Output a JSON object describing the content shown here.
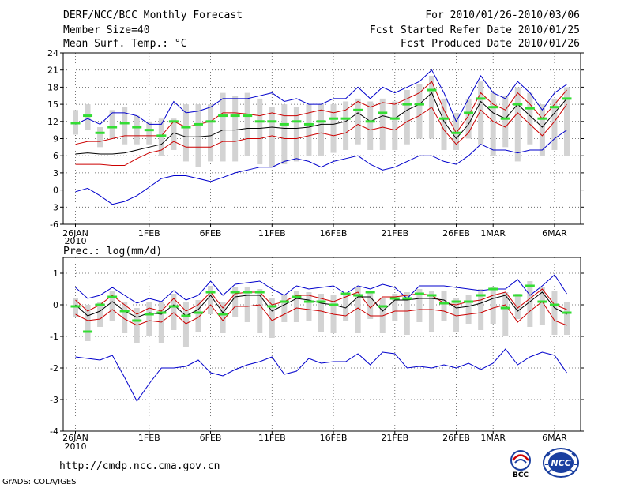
{
  "header": {
    "title": "DERF/NCC/BCC Monthly Forecast",
    "member": "Member Size=40",
    "variable": "Mean Surf. Temp.: °C",
    "period": "For 2010/01/26-2010/03/06",
    "refer": "Fcst Started Refer Date 2010/01/25",
    "produced": "Fcst Produced Date 2010/01/26"
  },
  "footer": {
    "url": "http://cmdp.ncc.cma.gov.cn",
    "credit": "GrADS: COLA/IGES",
    "logo1_text": "BCC",
    "logo2_text": "NCC"
  },
  "colors": {
    "box": "#d3d3d3",
    "median": "#33dd33",
    "mean": "#000000",
    "spread": "#cc0000",
    "extreme": "#0000cc",
    "grid": "#555555"
  },
  "chart_data": [
    {
      "type": "line",
      "title": "Mean Surf. Temp.: °C",
      "x_tick_labels": [
        "26JAN",
        "1FEB",
        "6FEB",
        "11FEB",
        "16FEB",
        "21FEB",
        "26FEB",
        "1MAR",
        "6MAR"
      ],
      "x_tick_days": [
        0,
        6,
        11,
        16,
        21,
        26,
        31,
        34,
        39
      ],
      "x_year_label": "2010",
      "ylim": [
        -6,
        24
      ],
      "y_ticks": [
        -6,
        -3,
        0,
        3,
        6,
        9,
        12,
        15,
        18,
        21,
        24
      ],
      "series": [
        {
          "name": "max",
          "values": [
            11.5,
            12.5,
            11.5,
            13.5,
            13.5,
            13,
            11.5,
            11.5,
            15.5,
            13.5,
            13.8,
            14.5,
            16,
            16,
            16,
            16.5,
            17,
            15.5,
            16,
            15,
            15,
            16,
            16,
            18,
            16,
            18,
            17,
            18,
            19,
            21,
            17,
            12,
            16,
            20,
            17,
            16,
            19,
            17,
            14,
            17,
            18.5
          ]
        },
        {
          "name": "upper",
          "values": [
            8,
            8.5,
            8.5,
            9,
            9.5,
            9.5,
            9.5,
            9.5,
            12,
            11,
            11.5,
            12,
            13.5,
            13.5,
            13.3,
            13,
            13.5,
            13,
            13,
            13.5,
            14,
            13.5,
            14,
            15.5,
            14.5,
            15.3,
            15,
            16,
            17,
            19,
            14,
            10,
            13,
            17,
            15,
            14,
            17,
            15,
            12.5,
            15,
            17.5
          ]
        },
        {
          "name": "mean",
          "values": [
            6.3,
            6.5,
            6.3,
            6.3,
            6.5,
            7,
            7.5,
            8,
            10,
            9.3,
            9.3,
            9.5,
            10.5,
            10.5,
            10.8,
            10.8,
            11,
            10.8,
            10.8,
            11,
            11.5,
            11.5,
            12,
            13.5,
            12,
            13,
            12.5,
            14,
            15,
            17,
            12,
            9,
            11.5,
            15.5,
            13.5,
            12.5,
            15,
            13,
            11,
            13.5,
            16
          ]
        },
        {
          "name": "lower",
          "values": [
            4.5,
            4.5,
            4.5,
            4.3,
            4.3,
            5.5,
            6.5,
            7,
            8.5,
            7.5,
            7.5,
            7.5,
            8.5,
            8.5,
            9,
            9,
            9.5,
            9,
            9,
            9.5,
            10,
            9.5,
            10,
            11.5,
            10.5,
            11,
            10.5,
            12,
            13,
            14.5,
            10.5,
            8,
            10,
            14,
            12,
            11,
            13.5,
            11.5,
            9.5,
            12,
            15
          ]
        },
        {
          "name": "min",
          "values": [
            -0.3,
            0.3,
            -1,
            -2.5,
            -2,
            -1,
            0.5,
            2,
            2.5,
            2.5,
            2,
            1.5,
            2.2,
            3,
            3.5,
            4,
            4,
            5,
            5.5,
            5,
            4,
            5,
            5.5,
            6,
            4.5,
            3.5,
            4,
            5,
            6,
            6,
            5,
            4.5,
            6,
            8,
            7,
            7,
            6.5,
            7,
            7,
            9,
            10.5
          ]
        },
        {
          "name": "median",
          "values": [
            11.7,
            13,
            10,
            11,
            11.7,
            11,
            10.5,
            9.5,
            12,
            11,
            11.5,
            12,
            13,
            13,
            13,
            12,
            12,
            11.5,
            12,
            11.5,
            12,
            12.5,
            12.5,
            14,
            12,
            13.5,
            12.5,
            15,
            15,
            17.5,
            12.5,
            10,
            13.5,
            16,
            14.5,
            12.5,
            15,
            14.3,
            12.5,
            14.5,
            16
          ]
        }
      ],
      "box_ranges": [
        [
          9.7,
          14
        ],
        [
          10.5,
          15
        ],
        [
          7.5,
          11
        ],
        [
          9,
          14
        ],
        [
          8,
          14.5
        ],
        [
          8,
          13
        ],
        [
          8,
          12
        ],
        [
          6,
          12.5
        ],
        [
          7,
          12.5
        ],
        [
          5,
          15
        ],
        [
          4,
          15
        ],
        [
          5,
          15
        ],
        [
          5,
          17
        ],
        [
          5,
          16.5
        ],
        [
          6,
          17
        ],
        [
          4.5,
          16
        ],
        [
          4,
          14.5
        ],
        [
          4.5,
          15
        ],
        [
          5,
          14.5
        ],
        [
          6,
          15
        ],
        [
          6,
          15
        ],
        [
          6.5,
          15
        ],
        [
          7,
          15.5
        ],
        [
          8,
          16
        ],
        [
          7,
          15.5
        ],
        [
          7,
          16
        ],
        [
          7,
          15.5
        ],
        [
          8,
          17.5
        ],
        [
          9,
          18.5
        ],
        [
          9,
          20
        ],
        [
          7,
          16
        ],
        [
          7,
          13.5
        ],
        [
          9,
          16
        ],
        [
          8,
          19
        ],
        [
          6,
          17
        ],
        [
          7.5,
          16.5
        ],
        [
          5,
          18
        ],
        [
          8,
          17
        ],
        [
          6,
          15
        ],
        [
          7,
          16
        ],
        [
          6,
          18
        ]
      ]
    },
    {
      "type": "line",
      "title": "Prec.: log(mm/d)",
      "x_tick_labels": [
        "26JAN",
        "1FEB",
        "6FEB",
        "11FEB",
        "16FEB",
        "21FEB",
        "26FEB",
        "1MAR",
        "6MAR"
      ],
      "x_tick_days": [
        0,
        6,
        11,
        16,
        21,
        26,
        31,
        34,
        39
      ],
      "x_year_label": "2010",
      "ylim": [
        -4,
        1.5
      ],
      "y_ticks": [
        -4,
        -3,
        -2,
        -1,
        0,
        1
      ],
      "series": [
        {
          "name": "max",
          "values": [
            0.55,
            0.2,
            0.3,
            0.55,
            0.3,
            0.05,
            0.2,
            0.1,
            0.45,
            0.15,
            0.3,
            0.75,
            0.3,
            0.65,
            0.7,
            0.75,
            0.5,
            0.3,
            0.6,
            0.5,
            0.55,
            0.6,
            0.35,
            0.6,
            0.5,
            0.65,
            0.55,
            0.2,
            0.6,
            0.6,
            0.6,
            0.55,
            0.5,
            0.45,
            0.5,
            0.5,
            0.8,
            0.3,
            0.6,
            0.95,
            0.35
          ]
        },
        {
          "name": "upper",
          "values": [
            0.15,
            -0.2,
            0,
            0.3,
            0,
            -0.3,
            -0.1,
            -0.2,
            0.2,
            -0.2,
            0,
            0.4,
            -0.1,
            0.35,
            0.4,
            0.4,
            0,
            0.1,
            0.3,
            0.3,
            0.2,
            0.1,
            0.25,
            0.4,
            -0.1,
            0.25,
            0.25,
            0.3,
            0.35,
            0.3,
            0.05,
            0,
            0.1,
            0.15,
            0.3,
            0.4,
            -0.1,
            0.2,
            0.5,
            0,
            -0.15
          ]
        },
        {
          "name": "mean",
          "values": [
            0,
            -0.35,
            -0.2,
            0.1,
            -0.2,
            -0.4,
            -0.25,
            -0.3,
            0,
            -0.35,
            -0.15,
            0.3,
            -0.25,
            0.25,
            0.3,
            0.3,
            -0.2,
            0,
            0.2,
            0.15,
            0.05,
            0,
            -0.1,
            0.25,
            0.25,
            -0.2,
            0.15,
            0.15,
            0.2,
            0.2,
            0.15,
            -0.1,
            -0.05,
            0.05,
            0.2,
            0.3,
            -0.2,
            0.1,
            0.4,
            -0.1,
            -0.3
          ]
        },
        {
          "name": "lower",
          "values": [
            -0.3,
            -0.5,
            -0.45,
            -0.15,
            -0.45,
            -0.65,
            -0.5,
            -0.55,
            -0.25,
            -0.6,
            -0.4,
            0,
            -0.5,
            -0.05,
            -0.05,
            0,
            -0.5,
            -0.3,
            -0.1,
            -0.15,
            -0.2,
            -0.3,
            -0.35,
            -0.1,
            -0.35,
            -0.35,
            -0.2,
            -0.2,
            -0.15,
            -0.15,
            -0.2,
            -0.35,
            -0.3,
            -0.25,
            -0.1,
            0,
            -0.55,
            -0.2,
            0.1,
            -0.5,
            -0.65
          ]
        },
        {
          "name": "min",
          "values": [
            -1.65,
            -1.7,
            -1.75,
            -1.6,
            -2.3,
            -3.05,
            -2.5,
            -2.0,
            -2.0,
            -1.95,
            -1.75,
            -2.15,
            -2.25,
            -2.05,
            -1.9,
            -1.8,
            -1.65,
            -2.2,
            -2.1,
            -1.7,
            -1.85,
            -1.8,
            -1.8,
            -1.55,
            -1.9,
            -1.5,
            -1.55,
            -2.0,
            -1.95,
            -2.0,
            -1.9,
            -2.0,
            -1.85,
            -2.05,
            -1.85,
            -1.4,
            -1.9,
            -1.65,
            -1.5,
            -1.6,
            -2.15
          ]
        },
        {
          "name": "median",
          "values": [
            -0.05,
            -0.85,
            0,
            0.25,
            -0.2,
            -0.5,
            -0.3,
            -0.25,
            -0.05,
            -0.35,
            -0.25,
            0.4,
            -0.3,
            0.4,
            0.4,
            0.4,
            -0.05,
            0.1,
            0.25,
            0.1,
            0.1,
            0,
            0.35,
            0.3,
            0.4,
            -0.05,
            0.2,
            0.2,
            0.35,
            0.3,
            0.05,
            0.1,
            0.1,
            0.3,
            0.5,
            -0.1,
            0.3,
            0.6,
            0.1,
            0,
            -0.25
          ]
        }
      ],
      "box_ranges": [
        [
          -0.4,
          0.2
        ],
        [
          -1.15,
          0
        ],
        [
          -0.7,
          0.1
        ],
        [
          -0.5,
          0.45
        ],
        [
          -0.9,
          0.1
        ],
        [
          -1.2,
          -0.1
        ],
        [
          -1.0,
          0.1
        ],
        [
          -1.2,
          0.1
        ],
        [
          -0.8,
          0.35
        ],
        [
          -1.35,
          0.1
        ],
        [
          -0.85,
          0.15
        ],
        [
          -0.3,
          0.6
        ],
        [
          -0.9,
          0.1
        ],
        [
          -0.4,
          0.55
        ],
        [
          -0.55,
          0.55
        ],
        [
          -0.9,
          0.5
        ],
        [
          -1.05,
          0.2
        ],
        [
          -0.55,
          0.3
        ],
        [
          -0.55,
          0.45
        ],
        [
          -0.5,
          0.4
        ],
        [
          -0.85,
          0.35
        ],
        [
          -0.9,
          0.3
        ],
        [
          -0.5,
          0.35
        ],
        [
          -0.9,
          0.55
        ],
        [
          -0.45,
          0.45
        ],
        [
          -0.9,
          0.2
        ],
        [
          -0.5,
          0.35
        ],
        [
          -0.95,
          0.4
        ],
        [
          -0.55,
          0.5
        ],
        [
          -0.85,
          0.45
        ],
        [
          -0.5,
          0.45
        ],
        [
          -0.85,
          0.2
        ],
        [
          -0.6,
          0.3
        ],
        [
          -0.8,
          0.5
        ],
        [
          -0.6,
          0.55
        ],
        [
          -1.0,
          0.4
        ],
        [
          -0.45,
          0.35
        ],
        [
          -0.7,
          0.75
        ],
        [
          -0.65,
          0.55
        ],
        [
          -0.95,
          0.45
        ],
        [
          -0.95,
          0.1
        ]
      ]
    }
  ]
}
